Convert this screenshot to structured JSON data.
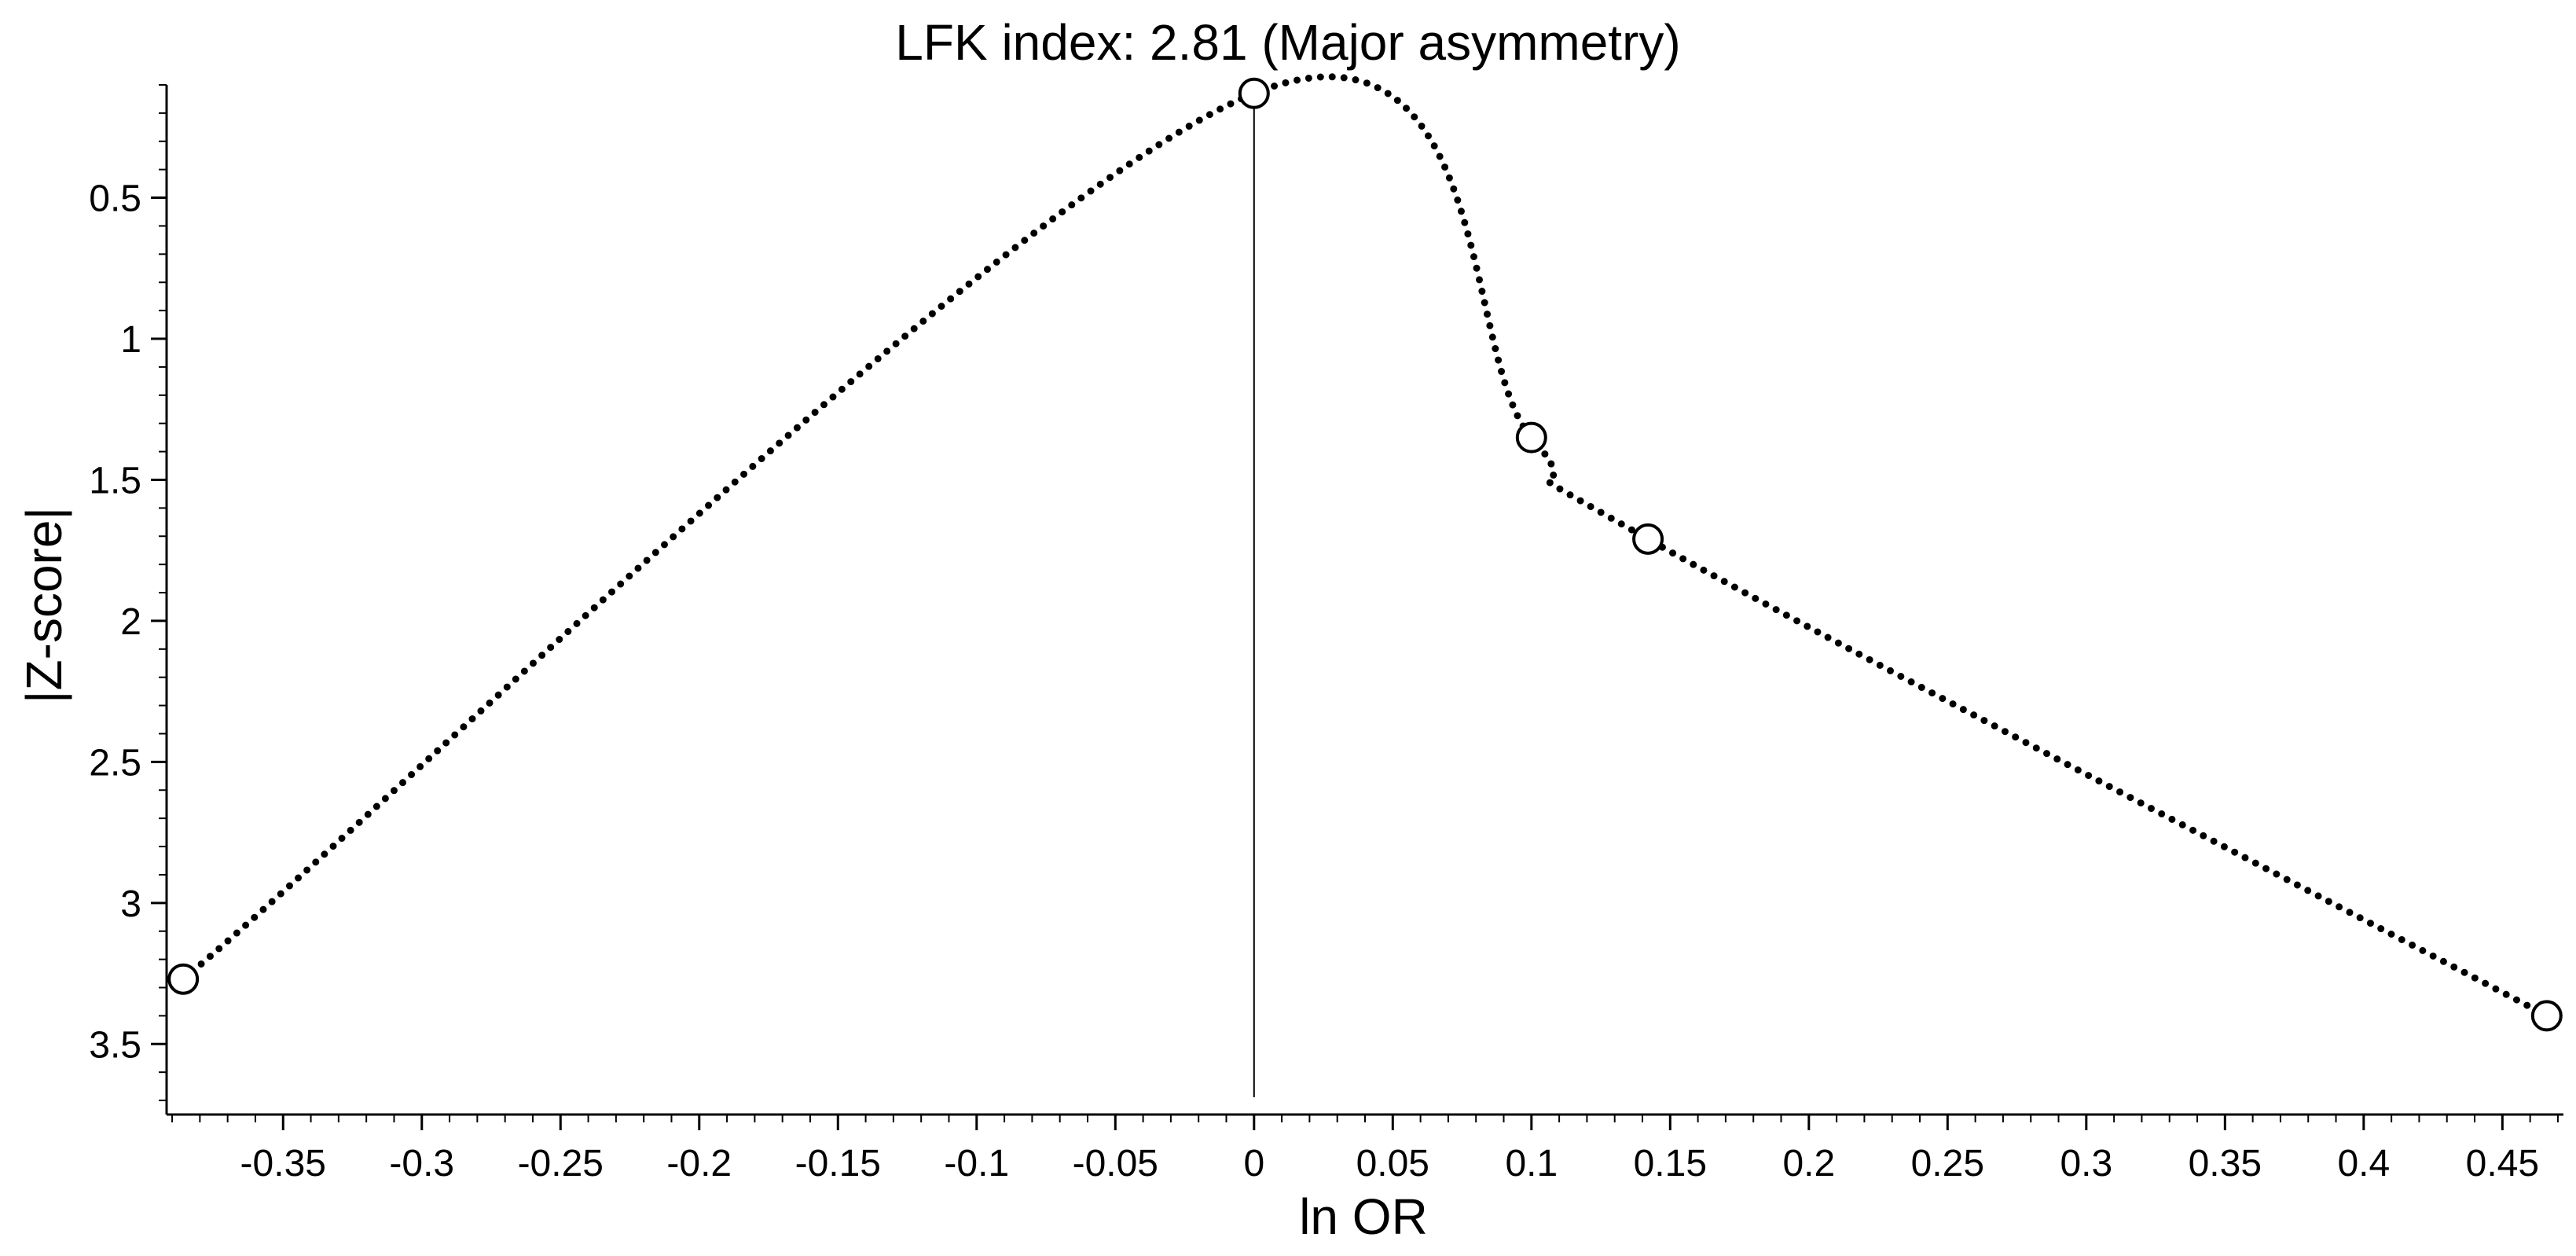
{
  "chart_data": {
    "type": "line",
    "title": "LFK index: 2.81 (Major asymmetry)",
    "xlabel": "ln OR",
    "ylabel": "|Z-score|",
    "xlim": [
      -0.392,
      0.472
    ],
    "ylim": [
      0.1,
      3.75
    ],
    "y_inverted": true,
    "xticks": [
      -0.35,
      -0.3,
      -0.25,
      -0.2,
      -0.15,
      -0.1,
      -0.05,
      0,
      0.05,
      0.1,
      0.15,
      0.2,
      0.25,
      0.3,
      0.35,
      0.4,
      0.45
    ],
    "xtick_labels": [
      "-0.35",
      "-0.3",
      "-0.25",
      "-0.2",
      "-0.15",
      "-0.1",
      "-0.05",
      "0",
      "0.05",
      "0.1",
      "0.15",
      "0.2",
      "0.25",
      "0.3",
      "0.35",
      "0.4",
      "0.45"
    ],
    "yticks": [
      0.5,
      1,
      1.5,
      2,
      2.5,
      3,
      3.5
    ],
    "ytick_labels": [
      "0.5",
      "1",
      "1.5",
      "2",
      "2.5",
      "3",
      "3.5"
    ],
    "grid": false,
    "reference_line_x": 0,
    "points": [
      {
        "x": -0.386,
        "y": 3.27
      },
      {
        "x": 0.0,
        "y": 0.13
      },
      {
        "x": 0.1,
        "y": 1.35
      },
      {
        "x": 0.142,
        "y": 1.71
      },
      {
        "x": 0.466,
        "y": 3.4
      }
    ]
  }
}
